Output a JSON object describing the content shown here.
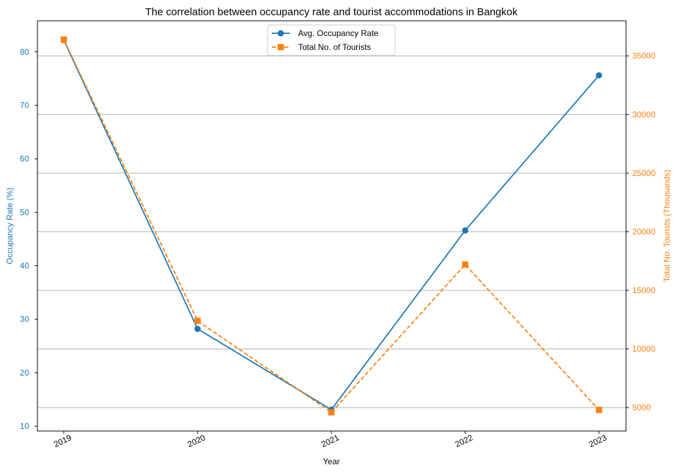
{
  "chart_data": {
    "type": "line",
    "title": "The correlation between occupancy rate and tourist accommodations in Bangkok",
    "xlabel": "Year",
    "ylabel_left": "Occupancy Rate (%)",
    "ylabel_right": "Total No. Tourists (Thousands)",
    "categories": [
      "2019",
      "2020",
      "2021",
      "2022",
      "2023"
    ],
    "left_axis": {
      "ylim": [
        9.1,
        85.8
      ],
      "ticks": [
        10,
        20,
        30,
        40,
        50,
        60,
        70,
        80
      ],
      "color": "#1f77b4"
    },
    "right_axis": {
      "ylim": [
        3000,
        38000
      ],
      "ticks": [
        5000,
        10000,
        15000,
        20000,
        25000,
        30000,
        35000
      ],
      "color": "#ff7f0e"
    },
    "series": [
      {
        "name": "Avg. Occupancy Rate",
        "axis": "left",
        "values": [
          82.2,
          28.2,
          13.1,
          46.6,
          75.6
        ],
        "color": "#1f77b4",
        "marker": "circle",
        "line_style": "solid"
      },
      {
        "name": "Total No. of Tourists",
        "axis": "right",
        "values": [
          36400,
          12400,
          4600,
          17200,
          4800
        ],
        "color": "#ff7f0e",
        "marker": "square",
        "line_style": "dashed"
      }
    ],
    "grid": "horizontal lines at right-axis ticks",
    "legend_position": "top-center"
  }
}
